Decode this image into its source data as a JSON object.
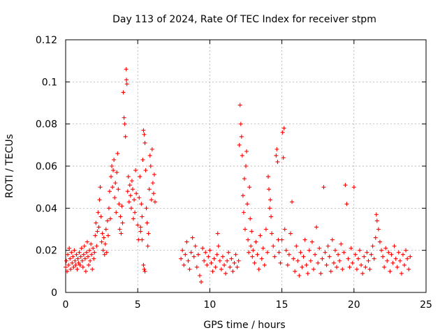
{
  "chart_data": {
    "type": "scatter",
    "title": "Day 113 of 2024, Rate Of TEC Index for receiver stpm",
    "xlabel": "GPS time / hours",
    "ylabel": "ROTI / TECUs",
    "xlim": [
      0,
      25
    ],
    "ylim": [
      0,
      0.12
    ],
    "xticks": [
      0,
      5,
      10,
      15,
      20,
      25
    ],
    "xtick_labels": [
      "0",
      "5",
      "10",
      "15",
      "20",
      "25"
    ],
    "yticks": [
      0,
      0.02,
      0.04,
      0.06,
      0.08,
      0.1,
      0.12
    ],
    "ytick_labels": [
      "0",
      "0.02",
      "0.04",
      "0.06",
      "0.08",
      "0.1",
      "0.12"
    ],
    "grid": true,
    "marker": "+",
    "series_color": "#ff0000",
    "points": [
      [
        0.0,
        0.012
      ],
      [
        0.05,
        0.015
      ],
      [
        0.1,
        0.01
      ],
      [
        0.15,
        0.018
      ],
      [
        0.2,
        0.013
      ],
      [
        0.25,
        0.021
      ],
      [
        0.3,
        0.016
      ],
      [
        0.35,
        0.011
      ],
      [
        0.4,
        0.019
      ],
      [
        0.45,
        0.014
      ],
      [
        0.5,
        0.017
      ],
      [
        0.55,
        0.012
      ],
      [
        0.6,
        0.02
      ],
      [
        0.65,
        0.015
      ],
      [
        0.7,
        0.013
      ],
      [
        0.75,
        0.018
      ],
      [
        0.8,
        0.011
      ],
      [
        0.85,
        0.016
      ],
      [
        0.9,
        0.014
      ],
      [
        0.95,
        0.019
      ],
      [
        1.0,
        0.013
      ],
      [
        1.05,
        0.017
      ],
      [
        1.1,
        0.021
      ],
      [
        1.15,
        0.015
      ],
      [
        1.2,
        0.012
      ],
      [
        1.25,
        0.018
      ],
      [
        1.3,
        0.022
      ],
      [
        1.35,
        0.016
      ],
      [
        1.4,
        0.01
      ],
      [
        1.45,
        0.019
      ],
      [
        1.5,
        0.024
      ],
      [
        1.55,
        0.017
      ],
      [
        1.6,
        0.013
      ],
      [
        1.65,
        0.02
      ],
      [
        1.7,
        0.015
      ],
      [
        1.75,
        0.023
      ],
      [
        1.8,
        0.018
      ],
      [
        1.85,
        0.011
      ],
      [
        1.9,
        0.021
      ],
      [
        1.95,
        0.016
      ],
      [
        2.0,
        0.019
      ],
      [
        2.05,
        0.027
      ],
      [
        2.1,
        0.033
      ],
      [
        2.15,
        0.022
      ],
      [
        2.2,
        0.029
      ],
      [
        2.25,
        0.038
      ],
      [
        2.3,
        0.031
      ],
      [
        2.35,
        0.044
      ],
      [
        2.4,
        0.05
      ],
      [
        2.45,
        0.036
      ],
      [
        2.5,
        0.024
      ],
      [
        2.55,
        0.028
      ],
      [
        2.6,
        0.02
      ],
      [
        2.65,
        0.026
      ],
      [
        2.7,
        0.018
      ],
      [
        2.75,
        0.023
      ],
      [
        2.8,
        0.03
      ],
      [
        2.85,
        0.019
      ],
      [
        2.9,
        0.034
      ],
      [
        2.95,
        0.027
      ],
      [
        3.0,
        0.04
      ],
      [
        3.05,
        0.048
      ],
      [
        3.1,
        0.035
      ],
      [
        3.15,
        0.055
      ],
      [
        3.2,
        0.06
      ],
      [
        3.25,
        0.05
      ],
      [
        3.3,
        0.058
      ],
      [
        3.35,
        0.063
      ],
      [
        3.4,
        0.045
      ],
      [
        3.45,
        0.052
      ],
      [
        3.5,
        0.038
      ],
      [
        3.55,
        0.057
      ],
      [
        3.6,
        0.066
      ],
      [
        3.65,
        0.049
      ],
      [
        3.7,
        0.042
      ],
      [
        3.75,
        0.03
      ],
      [
        3.8,
        0.036
      ],
      [
        3.85,
        0.028
      ],
      [
        3.9,
        0.041
      ],
      [
        3.95,
        0.033
      ],
      [
        4.0,
        0.095
      ],
      [
        4.05,
        0.083
      ],
      [
        4.1,
        0.08
      ],
      [
        4.15,
        0.074
      ],
      [
        4.2,
        0.106
      ],
      [
        4.22,
        0.101
      ],
      [
        4.25,
        0.099
      ],
      [
        4.3,
        0.048
      ],
      [
        4.35,
        0.055
      ],
      [
        4.4,
        0.043
      ],
      [
        4.45,
        0.051
      ],
      [
        4.5,
        0.046
      ],
      [
        4.55,
        0.04
      ],
      [
        4.6,
        0.053
      ],
      [
        4.65,
        0.049
      ],
      [
        4.7,
        0.035
      ],
      [
        4.75,
        0.044
      ],
      [
        4.8,
        0.038
      ],
      [
        4.85,
        0.058
      ],
      [
        4.9,
        0.047
      ],
      [
        5.0,
        0.032
      ],
      [
        5.05,
        0.025
      ],
      [
        5.1,
        0.045
      ],
      [
        5.15,
        0.055
      ],
      [
        5.2,
        0.031
      ],
      [
        5.25,
        0.042
      ],
      [
        5.3,
        0.036
      ],
      [
        5.35,
        0.063
      ],
      [
        5.4,
        0.077
      ],
      [
        5.45,
        0.075
      ],
      [
        5.5,
        0.071
      ],
      [
        5.55,
        0.058
      ],
      [
        5.6,
        0.04
      ],
      [
        5.65,
        0.033
      ],
      [
        5.7,
        0.022
      ],
      [
        5.75,
        0.028
      ],
      [
        5.8,
        0.049
      ],
      [
        5.85,
        0.065
      ],
      [
        5.9,
        0.06
      ],
      [
        5.95,
        0.044
      ],
      [
        6.0,
        0.068
      ],
      [
        6.05,
        0.052
      ],
      [
        6.1,
        0.047
      ],
      [
        6.15,
        0.056
      ],
      [
        6.2,
        0.043
      ],
      [
        5.45,
        0.011
      ],
      [
        5.5,
        0.01
      ],
      [
        5.4,
        0.013
      ],
      [
        5.3,
        0.025
      ],
      [
        5.2,
        0.029
      ],
      [
        8.0,
        0.016
      ],
      [
        8.1,
        0.02
      ],
      [
        8.2,
        0.013
      ],
      [
        8.3,
        0.018
      ],
      [
        8.4,
        0.024
      ],
      [
        8.5,
        0.015
      ],
      [
        8.6,
        0.011
      ],
      [
        8.7,
        0.019
      ],
      [
        8.8,
        0.026
      ],
      [
        8.9,
        0.017
      ],
      [
        9.0,
        0.022
      ],
      [
        9.1,
        0.012
      ],
      [
        9.2,
        0.018
      ],
      [
        9.3,
        0.008
      ],
      [
        9.4,
        0.005
      ],
      [
        9.5,
        0.021
      ],
      [
        9.6,
        0.015
      ],
      [
        9.7,
        0.019
      ],
      [
        9.8,
        0.013
      ],
      [
        9.9,
        0.017
      ],
      [
        10.0,
        0.02
      ],
      [
        10.1,
        0.014
      ],
      [
        10.2,
        0.01
      ],
      [
        10.3,
        0.016
      ],
      [
        10.4,
        0.012
      ],
      [
        10.5,
        0.018
      ],
      [
        10.55,
        0.028
      ],
      [
        10.6,
        0.022
      ],
      [
        10.7,
        0.015
      ],
      [
        10.8,
        0.011
      ],
      [
        10.9,
        0.017
      ],
      [
        11.0,
        0.013
      ],
      [
        11.1,
        0.009
      ],
      [
        11.2,
        0.015
      ],
      [
        11.3,
        0.019
      ],
      [
        11.4,
        0.012
      ],
      [
        11.5,
        0.016
      ],
      [
        11.6,
        0.01
      ],
      [
        11.7,
        0.014
      ],
      [
        11.8,
        0.018
      ],
      [
        11.9,
        0.012
      ],
      [
        12.0,
        0.015
      ],
      [
        12.05,
        0.07
      ],
      [
        12.1,
        0.089
      ],
      [
        12.15,
        0.08
      ],
      [
        12.2,
        0.074
      ],
      [
        12.25,
        0.065
      ],
      [
        12.3,
        0.046
      ],
      [
        12.35,
        0.038
      ],
      [
        12.4,
        0.054
      ],
      [
        12.45,
        0.03
      ],
      [
        12.5,
        0.06
      ],
      [
        12.55,
        0.067
      ],
      [
        12.6,
        0.042
      ],
      [
        12.65,
        0.025
      ],
      [
        12.7,
        0.019
      ],
      [
        12.75,
        0.05
      ],
      [
        12.8,
        0.035
      ],
      [
        12.85,
        0.022
      ],
      [
        12.9,
        0.029
      ],
      [
        12.95,
        0.017
      ],
      [
        13.0,
        0.02
      ],
      [
        13.1,
        0.014
      ],
      [
        13.2,
        0.024
      ],
      [
        13.3,
        0.018
      ],
      [
        13.4,
        0.011
      ],
      [
        13.5,
        0.027
      ],
      [
        13.6,
        0.016
      ],
      [
        13.7,
        0.021
      ],
      [
        13.8,
        0.013
      ],
      [
        13.9,
        0.03
      ],
      [
        14.0,
        0.019
      ],
      [
        14.05,
        0.055
      ],
      [
        14.1,
        0.049
      ],
      [
        14.15,
        0.04
      ],
      [
        14.2,
        0.044
      ],
      [
        14.25,
        0.036
      ],
      [
        14.3,
        0.028
      ],
      [
        14.4,
        0.022
      ],
      [
        14.5,
        0.017
      ],
      [
        14.6,
        0.065
      ],
      [
        14.65,
        0.068
      ],
      [
        14.7,
        0.062
      ],
      [
        14.75,
        0.025
      ],
      [
        14.8,
        0.019
      ],
      [
        14.9,
        0.014
      ],
      [
        15.0,
        0.025
      ],
      [
        15.05,
        0.076
      ],
      [
        15.1,
        0.064
      ],
      [
        15.15,
        0.078
      ],
      [
        15.2,
        0.03
      ],
      [
        15.3,
        0.02
      ],
      [
        15.4,
        0.013
      ],
      [
        15.5,
        0.018
      ],
      [
        15.6,
        0.028
      ],
      [
        15.7,
        0.043
      ],
      [
        15.8,
        0.016
      ],
      [
        15.9,
        0.01
      ],
      [
        16.0,
        0.022
      ],
      [
        16.1,
        0.015
      ],
      [
        16.2,
        0.008
      ],
      [
        16.3,
        0.019
      ],
      [
        16.4,
        0.012
      ],
      [
        16.5,
        0.017
      ],
      [
        16.6,
        0.025
      ],
      [
        16.7,
        0.013
      ],
      [
        16.8,
        0.009
      ],
      [
        16.9,
        0.02
      ],
      [
        17.0,
        0.015
      ],
      [
        17.1,
        0.024
      ],
      [
        17.2,
        0.011
      ],
      [
        17.3,
        0.018
      ],
      [
        17.4,
        0.031
      ],
      [
        17.5,
        0.014
      ],
      [
        17.6,
        0.021
      ],
      [
        17.7,
        0.009
      ],
      [
        17.8,
        0.016
      ],
      [
        17.9,
        0.05
      ],
      [
        18.0,
        0.019
      ],
      [
        18.1,
        0.013
      ],
      [
        18.2,
        0.022
      ],
      [
        18.3,
        0.017
      ],
      [
        18.4,
        0.01
      ],
      [
        18.5,
        0.025
      ],
      [
        18.6,
        0.014
      ],
      [
        18.7,
        0.02
      ],
      [
        18.8,
        0.012
      ],
      [
        18.9,
        0.018
      ],
      [
        19.0,
        0.015
      ],
      [
        19.1,
        0.023
      ],
      [
        19.2,
        0.011
      ],
      [
        19.3,
        0.019
      ],
      [
        19.4,
        0.051
      ],
      [
        19.5,
        0.042
      ],
      [
        19.6,
        0.016
      ],
      [
        19.7,
        0.012
      ],
      [
        19.8,
        0.021
      ],
      [
        19.9,
        0.014
      ],
      [
        20.0,
        0.05
      ],
      [
        20.1,
        0.018
      ],
      [
        20.2,
        0.011
      ],
      [
        20.3,
        0.016
      ],
      [
        20.4,
        0.02
      ],
      [
        20.5,
        0.013
      ],
      [
        20.6,
        0.009
      ],
      [
        20.7,
        0.017
      ],
      [
        20.8,
        0.012
      ],
      [
        20.9,
        0.019
      ],
      [
        21.0,
        0.015
      ],
      [
        21.1,
        0.011
      ],
      [
        21.2,
        0.018
      ],
      [
        21.3,
        0.022
      ],
      [
        21.4,
        0.016
      ],
      [
        21.5,
        0.026
      ],
      [
        21.55,
        0.037
      ],
      [
        21.6,
        0.034
      ],
      [
        21.7,
        0.03
      ],
      [
        21.8,
        0.024
      ],
      [
        21.9,
        0.02
      ],
      [
        22.0,
        0.017
      ],
      [
        22.1,
        0.012
      ],
      [
        22.2,
        0.021
      ],
      [
        22.3,
        0.015
      ],
      [
        22.4,
        0.019
      ],
      [
        22.5,
        0.01
      ],
      [
        22.6,
        0.018
      ],
      [
        22.7,
        0.014
      ],
      [
        22.8,
        0.022
      ],
      [
        22.9,
        0.016
      ],
      [
        23.0,
        0.012
      ],
      [
        23.1,
        0.019
      ],
      [
        23.2,
        0.015
      ],
      [
        23.3,
        0.009
      ],
      [
        23.4,
        0.018
      ],
      [
        23.5,
        0.013
      ],
      [
        23.6,
        0.02
      ],
      [
        23.7,
        0.016
      ],
      [
        23.8,
        0.011
      ],
      [
        23.9,
        0.017
      ]
    ]
  }
}
